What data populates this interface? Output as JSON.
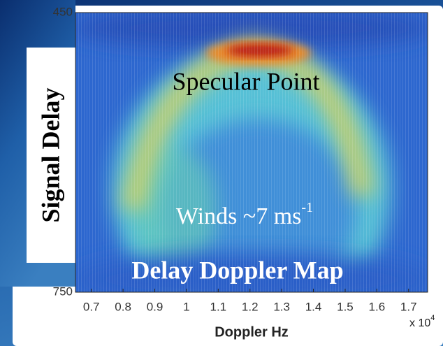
{
  "chart_data": {
    "type": "heatmap",
    "xlabel": "Doppler Hz",
    "ylabel": "Signal Delay",
    "title": "Delay Doppler Map",
    "annotation": "Specular Point",
    "winds_label": "Winds ~7 ms",
    "winds_exponent": "-1",
    "x_scale_label": "x 10",
    "x_scale_exponent": "4",
    "xlim": [
      0.65,
      1.76
    ],
    "xticks": [
      0.7,
      0.8,
      0.9,
      1,
      1.1,
      1.2,
      1.3,
      1.4,
      1.5,
      1.6,
      1.7
    ],
    "ylim": [
      450,
      750
    ],
    "yticks": [
      450,
      750
    ],
    "y_inverted": true
  }
}
